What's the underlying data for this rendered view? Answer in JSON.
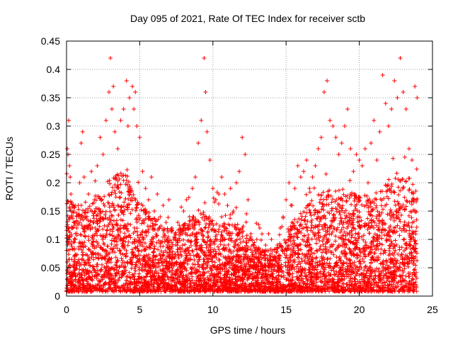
{
  "chart_data": {
    "type": "scatter",
    "title": "Day 095 of 2021, Rate Of TEC Index for receiver sctb",
    "xlabel": "GPS time / hours",
    "ylabel": "ROTI / TECUs",
    "xlim": [
      0,
      25
    ],
    "ylim": [
      0,
      0.45
    ],
    "xticks": [
      "0",
      "5",
      "10",
      "15",
      "20",
      "25"
    ],
    "yticks": [
      "0",
      "0.05",
      "0.1",
      "0.15",
      "0.2",
      "0.25",
      "0.3",
      "0.35",
      "0.4",
      "0.45"
    ],
    "grid": true,
    "marker": "+",
    "color": "#ff0000",
    "series": [
      {
        "x": [
          0.05,
          0.1,
          0.15,
          0.2,
          0.25,
          0.3,
          0.35,
          0.4,
          0.5,
          0.6,
          0.7,
          0.8,
          0.9,
          1.0,
          1.1,
          1.2,
          1.3,
          1.5,
          1.7,
          1.9,
          2.1,
          2.3,
          2.5,
          2.7,
          2.9,
          3.0,
          3.1,
          3.2,
          3.3,
          3.5,
          3.7,
          3.9,
          4.1,
          4.2,
          4.3,
          4.5,
          4.6,
          4.7,
          4.8,
          5.0,
          5.2,
          5.4,
          5.6,
          5.8,
          6.0,
          6.2,
          6.4,
          6.6,
          6.8,
          7.0,
          7.2,
          7.4,
          7.6,
          7.8,
          8.0,
          8.2,
          8.4,
          8.6,
          8.8,
          9.0,
          9.2,
          9.4,
          9.5,
          9.6,
          9.8,
          10.0,
          10.2,
          10.4,
          10.6,
          10.8,
          11.0,
          11.2,
          11.4,
          11.6,
          11.8,
          12.0,
          12.2,
          12.4,
          12.6,
          12.8,
          13.0,
          13.2,
          13.4,
          13.6,
          13.8,
          14.0,
          14.2,
          14.4,
          14.6,
          14.8,
          15.0,
          15.2,
          15.4,
          15.6,
          15.8,
          16.0,
          16.2,
          16.4,
          16.6,
          16.8,
          17.0,
          17.2,
          17.4,
          17.6,
          17.8,
          18.0,
          18.2,
          18.4,
          18.6,
          18.8,
          19.0,
          19.2,
          19.4,
          19.6,
          19.8,
          20.0,
          20.2,
          20.4,
          20.6,
          20.8,
          21.0,
          21.2,
          21.4,
          21.6,
          21.8,
          22.0,
          22.2,
          22.4,
          22.6,
          22.8,
          23.0,
          23.2,
          23.4,
          23.6,
          23.8,
          23.95
        ],
        "y": [
          0.26,
          0.25,
          0.31,
          0.23,
          0.21,
          0.18,
          0.14,
          0.12,
          0.15,
          0.1,
          0.12,
          0.16,
          0.2,
          0.27,
          0.29,
          0.21,
          0.14,
          0.18,
          0.22,
          0.17,
          0.23,
          0.28,
          0.25,
          0.31,
          0.36,
          0.42,
          0.33,
          0.37,
          0.29,
          0.26,
          0.31,
          0.33,
          0.38,
          0.3,
          0.35,
          0.37,
          0.33,
          0.36,
          0.3,
          0.28,
          0.22,
          0.19,
          0.17,
          0.21,
          0.15,
          0.18,
          0.14,
          0.16,
          0.13,
          0.17,
          0.12,
          0.11,
          0.13,
          0.12,
          0.15,
          0.17,
          0.14,
          0.19,
          0.21,
          0.27,
          0.31,
          0.42,
          0.36,
          0.29,
          0.24,
          0.19,
          0.17,
          0.18,
          0.21,
          0.18,
          0.16,
          0.19,
          0.15,
          0.2,
          0.22,
          0.28,
          0.25,
          0.17,
          0.11,
          0.09,
          0.1,
          0.12,
          0.08,
          0.09,
          0.11,
          0.1,
          0.07,
          0.09,
          0.12,
          0.14,
          0.17,
          0.2,
          0.16,
          0.19,
          0.23,
          0.21,
          0.22,
          0.24,
          0.19,
          0.21,
          0.23,
          0.26,
          0.28,
          0.36,
          0.38,
          0.31,
          0.3,
          0.28,
          0.25,
          0.27,
          0.3,
          0.33,
          0.26,
          0.22,
          0.25,
          0.24,
          0.23,
          0.26,
          0.2,
          0.27,
          0.31,
          0.24,
          0.29,
          0.39,
          0.34,
          0.3,
          0.33,
          0.38,
          0.35,
          0.42,
          0.36,
          0.33,
          0.26,
          0.24,
          0.37,
          0.35
        ]
      }
    ],
    "density": {
      "hour_bins": [
        0,
        1,
        2,
        3,
        4,
        5,
        6,
        7,
        8,
        9,
        10,
        11,
        12,
        13,
        14,
        15,
        16,
        17,
        18,
        19,
        20,
        21,
        22,
        23,
        24
      ],
      "typical_upper": [
        0.17,
        0.14,
        0.17,
        0.2,
        0.22,
        0.16,
        0.13,
        0.11,
        0.12,
        0.14,
        0.13,
        0.12,
        0.12,
        0.08,
        0.07,
        0.11,
        0.14,
        0.17,
        0.18,
        0.18,
        0.17,
        0.17,
        0.2,
        0.2,
        0.2
      ]
    }
  }
}
